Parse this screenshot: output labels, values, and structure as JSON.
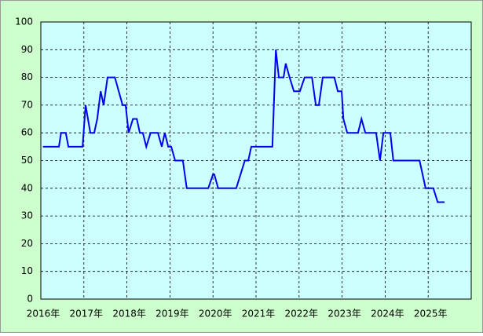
{
  "chart_data": {
    "type": "line",
    "x": [
      2016.05,
      2016.42,
      2016.47,
      2016.58,
      2016.64,
      2016.97,
      2017.04,
      2017.15,
      2017.24,
      2017.31,
      2017.39,
      2017.46,
      2017.55,
      2017.72,
      2017.81,
      2017.9,
      2017.97,
      2018.04,
      2018.14,
      2018.23,
      2018.3,
      2018.37,
      2018.45,
      2018.55,
      2018.72,
      2018.81,
      2018.88,
      2018.96,
      2019.03,
      2019.12,
      2019.3,
      2019.39,
      2019.89,
      2020.0,
      2020.03,
      2020.12,
      2020.54,
      2020.64,
      2020.74,
      2020.82,
      2020.89,
      2021.38,
      2021.46,
      2021.53,
      2021.64,
      2021.69,
      2021.78,
      2021.88,
      2022.02,
      2022.13,
      2022.3,
      2022.39,
      2022.46,
      2022.55,
      2022.82,
      2022.9,
      2022.99,
      2023.03,
      2023.12,
      2023.37,
      2023.45,
      2023.54,
      2023.79,
      2023.88,
      2023.96,
      2024.12,
      2024.19,
      2024.8,
      2024.87,
      2024.94,
      2025.12,
      2025.22,
      2025.38
    ],
    "series": [
      {
        "color": "#0000ee",
        "values": [
          55,
          55,
          60,
          60,
          55,
          55,
          70,
          60,
          60,
          65,
          75,
          70,
          80,
          80,
          75,
          70,
          70,
          60,
          65,
          65,
          60,
          60,
          55,
          60,
          60,
          55,
          60,
          55,
          55,
          50,
          50,
          40,
          40,
          45,
          45,
          40,
          40,
          45,
          50,
          50,
          55,
          55,
          90,
          80,
          80,
          85,
          80,
          75,
          75,
          80,
          80,
          70,
          70,
          80,
          80,
          75,
          75,
          65,
          60,
          60,
          65,
          60,
          60,
          50,
          60,
          60,
          50,
          50,
          45,
          40,
          40,
          35,
          35
        ]
      }
    ],
    "xlim": [
      2016,
      2026
    ],
    "ylim": [
      0,
      100
    ],
    "xticks": [
      {
        "value": 2016,
        "label": "2016年"
      },
      {
        "value": 2017,
        "label": "2017年"
      },
      {
        "value": 2018,
        "label": "2018年"
      },
      {
        "value": 2019,
        "label": "2019年"
      },
      {
        "value": 2020,
        "label": "2020年"
      },
      {
        "value": 2021,
        "label": "2021年"
      },
      {
        "value": 2022,
        "label": "2022年"
      },
      {
        "value": 2023,
        "label": "2023年"
      },
      {
        "value": 2024,
        "label": "2024年"
      },
      {
        "value": 2025,
        "label": "2025年"
      }
    ],
    "yticks": [
      0,
      10,
      20,
      30,
      40,
      50,
      60,
      70,
      80,
      90,
      100
    ],
    "grid": true
  }
}
